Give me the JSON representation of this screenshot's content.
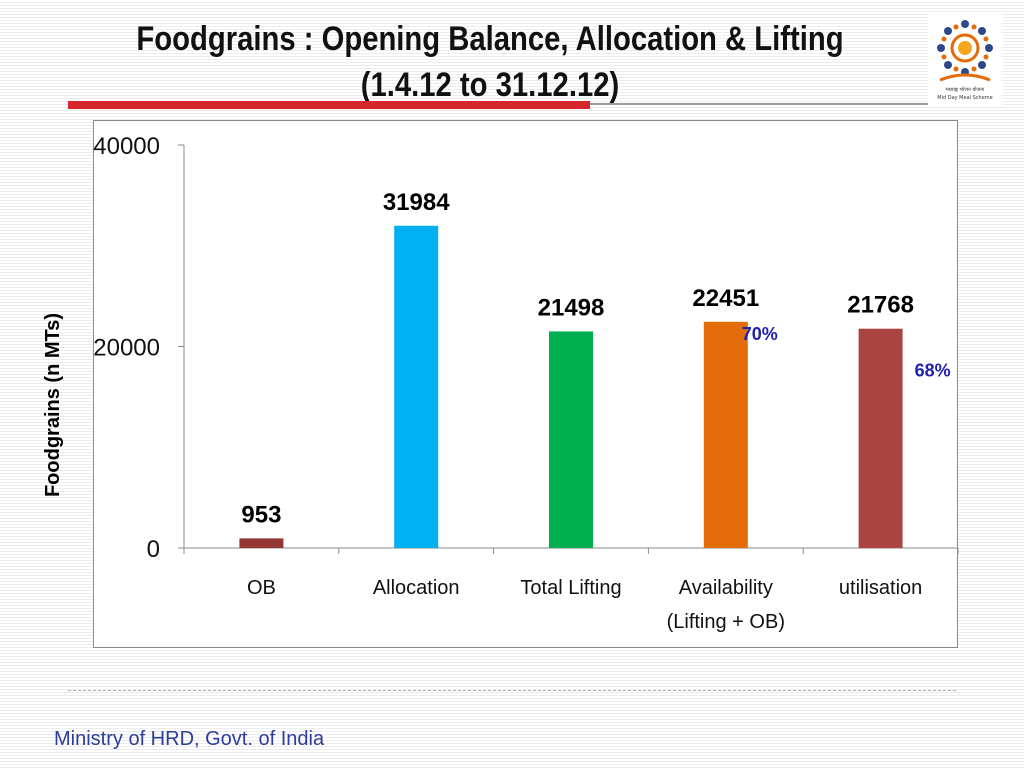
{
  "slide": {
    "title_line1": "Foodgrains : Opening Balance, Allocation & Lifting",
    "title_line2": "(1.4.12 to 31.12.12)",
    "logo_caption_hindi": "मध्याह्न भोजन योजना",
    "logo_caption": "Mid Day Meal Scheme",
    "footer": "Ministry of HRD, Govt. of India"
  },
  "colors": {
    "title_rule": "#d6262b",
    "footer_text": "#2c3d9a",
    "percent_text": "#1f1fb0"
  },
  "chart_data": {
    "type": "bar",
    "ylabel": "Foodgrains (n MTs)",
    "ylim": [
      0,
      40000
    ],
    "yticks": [
      0,
      20000,
      40000
    ],
    "grid": false,
    "legend": "none",
    "categories": [
      {
        "label": "OB",
        "value": 953,
        "color": "#943634"
      },
      {
        "label": "Allocation",
        "value": 31984,
        "color": "#00b0f0"
      },
      {
        "label": "Total Lifting",
        "value": 21498,
        "color": "#00b050"
      },
      {
        "label": [
          "Availability",
          "(Lifting + OB)"
        ],
        "value": 22451,
        "color": "#e36c09",
        "percent": "70%"
      },
      {
        "label": "utilisation",
        "value": 21768,
        "color": "#a94442",
        "percent": "68%"
      }
    ]
  }
}
